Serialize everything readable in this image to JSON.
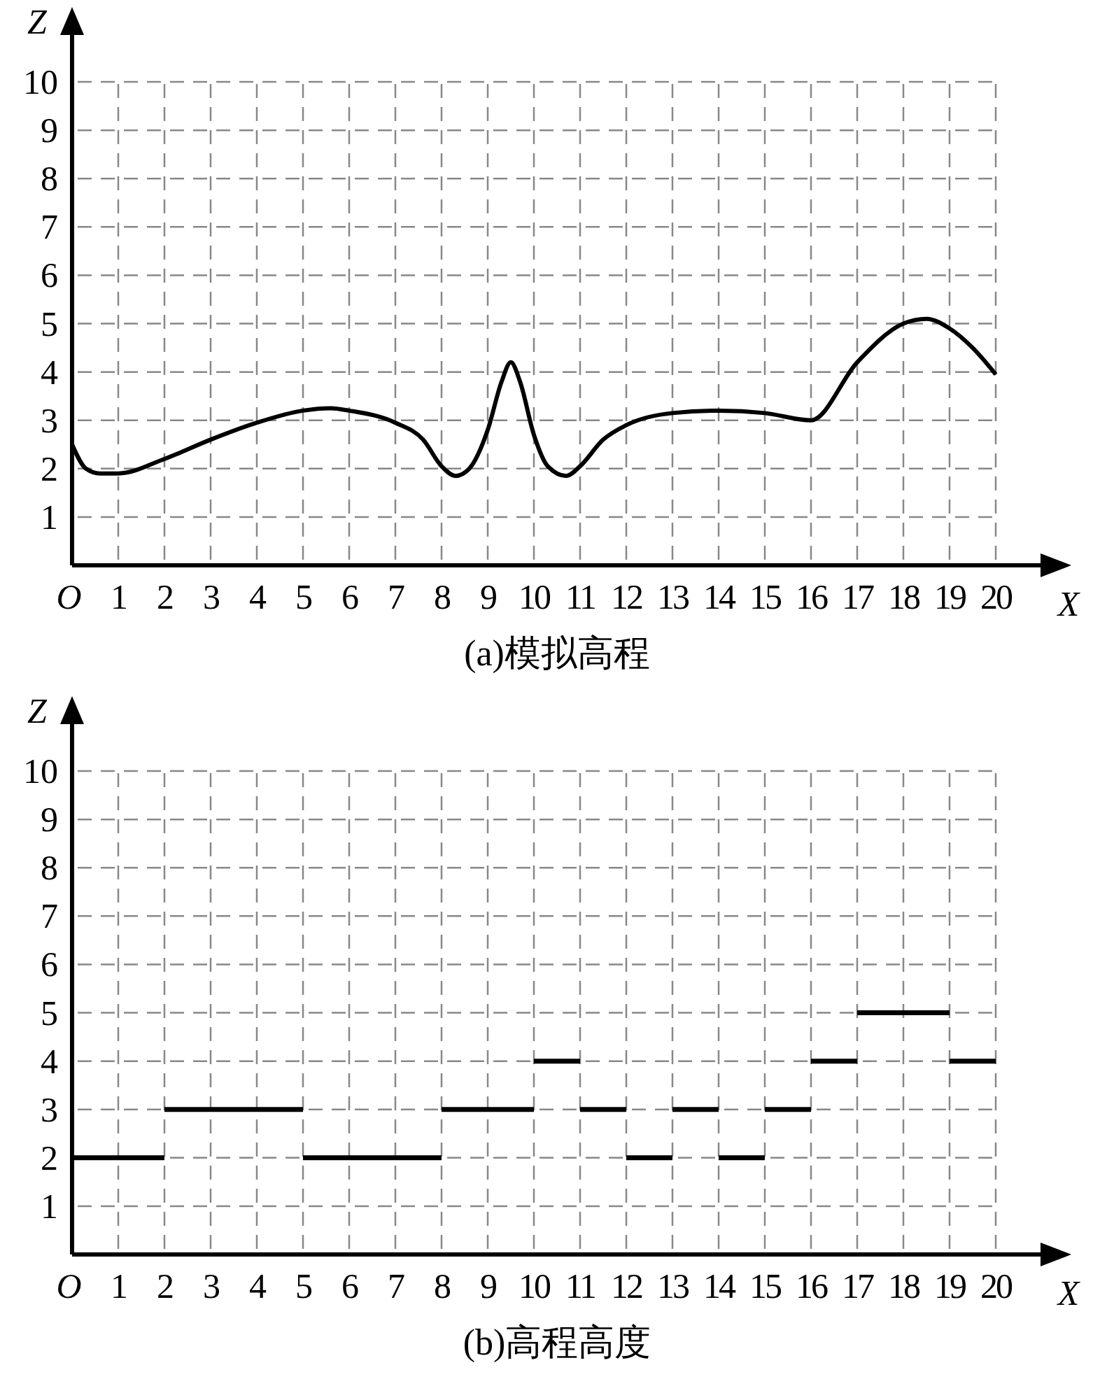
{
  "chart_data": [
    {
      "type": "line",
      "title": "(a)模拟高程",
      "xlabel": "X",
      "ylabel": "Z",
      "xlim": [
        0,
        21
      ],
      "ylim": [
        0,
        11
      ],
      "xticks": [
        {
          "value": 0,
          "label": "O"
        },
        1,
        2,
        3,
        4,
        5,
        6,
        7,
        8,
        9,
        10,
        11,
        12,
        13,
        14,
        15,
        16,
        17,
        18,
        19,
        20
      ],
      "yticks": [
        1,
        2,
        3,
        4,
        5,
        6,
        7,
        8,
        9,
        10
      ],
      "grid": true,
      "marker": "none",
      "line_style": "solid",
      "series": [
        {
          "color": "#000000",
          "x": [
            0,
            0.3,
            0.6,
            1,
            2,
            3,
            4,
            5,
            5.6,
            6,
            7,
            7.6,
            8,
            8.3,
            8.6,
            9,
            9.3,
            9.5,
            9.7,
            10,
            10.3,
            10.7,
            11,
            11.5,
            12,
            13,
            14,
            15,
            16,
            17,
            18,
            18.5,
            19,
            19.5,
            20
          ],
          "values": [
            2.5,
            2.0,
            1.9,
            1.9,
            2.2,
            2.6,
            2.95,
            3.2,
            3.25,
            3.2,
            2.95,
            2.6,
            2.05,
            1.85,
            2.0,
            2.8,
            3.8,
            4.2,
            3.8,
            2.7,
            2.05,
            1.85,
            2.05,
            2.6,
            2.9,
            3.15,
            3.2,
            3.15,
            3.0,
            4.2,
            5.0,
            5.1,
            4.9,
            4.5,
            3.95
          ]
        }
      ]
    },
    {
      "type": "line",
      "title": "(b)高程高度",
      "xlabel": "X",
      "ylabel": "Z",
      "xlim": [
        0,
        21
      ],
      "ylim": [
        0,
        11
      ],
      "xticks": [
        {
          "value": 0,
          "label": "O"
        },
        1,
        2,
        3,
        4,
        5,
        6,
        7,
        8,
        9,
        10,
        11,
        12,
        13,
        14,
        15,
        16,
        17,
        18,
        19,
        20
      ],
      "yticks": [
        1,
        2,
        3,
        4,
        5,
        6,
        7,
        8,
        9,
        10
      ],
      "grid": true,
      "marker": "none",
      "line_style": "solid",
      "series": [
        {
          "color": "#000000",
          "x": [
            0,
            2
          ],
          "values": [
            2,
            2
          ]
        },
        {
          "color": "#000000",
          "x": [
            2,
            5
          ],
          "values": [
            3,
            3
          ]
        },
        {
          "color": "#000000",
          "x": [
            5,
            8
          ],
          "values": [
            2,
            2
          ]
        },
        {
          "color": "#000000",
          "x": [
            8,
            10
          ],
          "values": [
            3,
            3
          ]
        },
        {
          "color": "#000000",
          "x": [
            10,
            11
          ],
          "values": [
            4,
            4
          ]
        },
        {
          "color": "#000000",
          "x": [
            11,
            12
          ],
          "values": [
            3,
            3
          ]
        },
        {
          "color": "#000000",
          "x": [
            12,
            13
          ],
          "values": [
            2,
            2
          ]
        },
        {
          "color": "#000000",
          "x": [
            13,
            14
          ],
          "values": [
            3,
            3
          ]
        },
        {
          "color": "#000000",
          "x": [
            14,
            15
          ],
          "values": [
            2,
            2
          ]
        },
        {
          "color": "#000000",
          "x": [
            15,
            16
          ],
          "values": [
            3,
            3
          ]
        },
        {
          "color": "#000000",
          "x": [
            16,
            17
          ],
          "values": [
            4,
            4
          ]
        },
        {
          "color": "#000000",
          "x": [
            17,
            19
          ],
          "values": [
            5,
            5
          ]
        },
        {
          "color": "#000000",
          "x": [
            19,
            20
          ],
          "values": [
            4,
            4
          ]
        }
      ]
    }
  ]
}
